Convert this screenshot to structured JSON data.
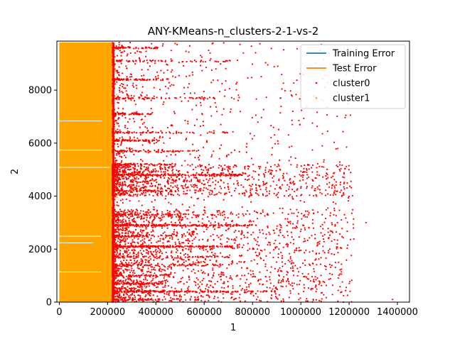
{
  "chart_data": {
    "type": "scatter",
    "title": "ANY-KMeans-n_clusters-2-1-vs-2",
    "xlabel": "1",
    "ylabel": "2",
    "xlim": [
      -10000,
      1450000
    ],
    "ylim": [
      0,
      9850
    ],
    "xticks": [
      0,
      200000,
      400000,
      600000,
      800000,
      1000000,
      1200000,
      1400000
    ],
    "xtick_labels": [
      "0",
      "200000",
      "400000",
      "600000",
      "800000",
      "1000000",
      "1200000",
      "1400000"
    ],
    "yticks": [
      0,
      2000,
      4000,
      6000,
      8000
    ],
    "ytick_labels": [
      "0",
      "2000",
      "4000",
      "6000",
      "8000"
    ],
    "grid": false,
    "legend_position": "top-right",
    "legend": [
      {
        "label": "Training Error",
        "kind": "line",
        "color": "#1f77b4"
      },
      {
        "label": "Test Error",
        "kind": "line",
        "color": "#ff7f0e"
      },
      {
        "label": "cluster0",
        "kind": "point",
        "color": "#ff0000"
      },
      {
        "label": "cluster1",
        "kind": "point",
        "color": "#ffa500"
      }
    ],
    "series": [
      {
        "name": "cluster1",
        "color": "#ffa500",
        "description": "dense block of points",
        "x_range": [
          0,
          220000
        ],
        "y_range": [
          0,
          9800
        ]
      },
      {
        "name": "cluster0",
        "color": "#ff0000",
        "description": "sparse points, dense near x=220000, with horizontal bands",
        "x_range": [
          220000,
          1390000
        ],
        "y_range": [
          0,
          9800
        ],
        "bands_y": [
          100,
          400,
          700,
          1000,
          1400,
          1700,
          2100,
          2500,
          2900,
          3300,
          4200,
          4800,
          5200,
          5700,
          6100,
          6400,
          7100,
          7700,
          8400,
          9100,
          9600
        ],
        "extreme_points": [
          [
            1380000,
            100
          ],
          [
            1270000,
            3000
          ],
          [
            1180000,
            4700
          ],
          [
            1160000,
            5000
          ],
          [
            1120000,
            2000
          ]
        ]
      }
    ]
  }
}
